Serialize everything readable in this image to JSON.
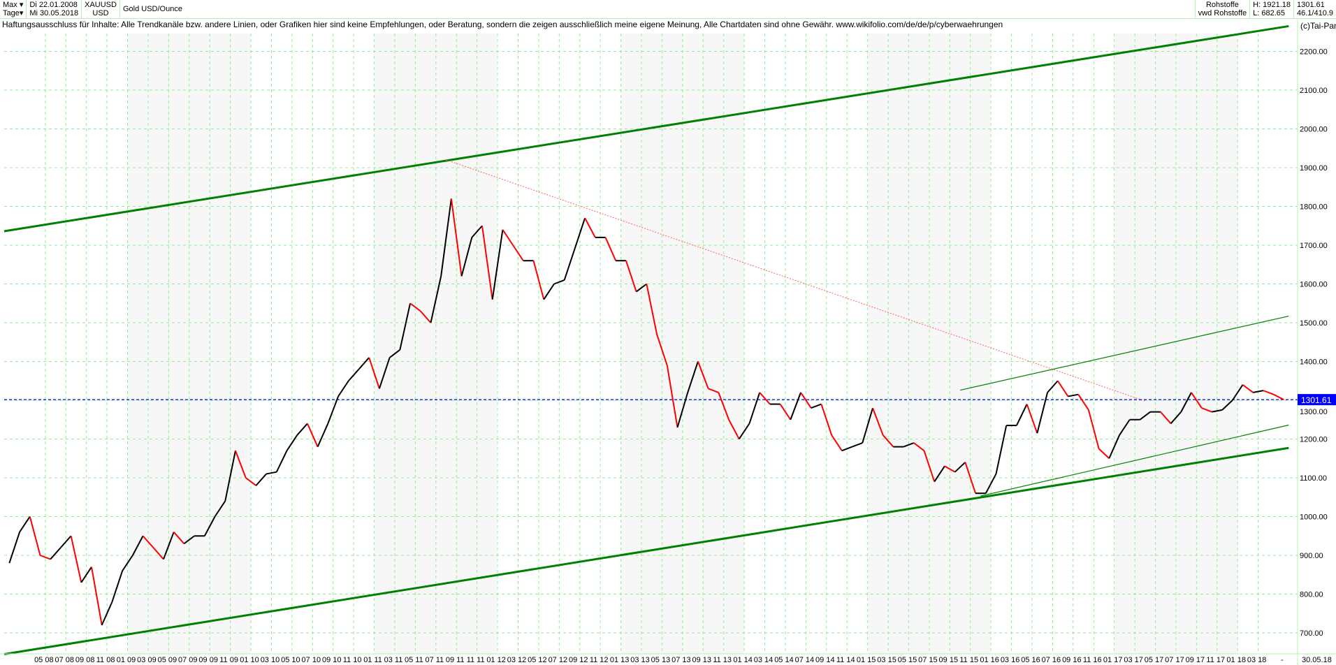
{
  "header": {
    "period_select": "Max",
    "interval_select": "Tage",
    "start_date": "Di 22.01.2008",
    "end_date": "Mi 30.05.2018",
    "symbol": "XAUUSD",
    "currency": "USD",
    "name": "Gold USD/Ounce",
    "group": "Rohstoffe",
    "source": "vwd Rohstoffe",
    "high": "H: 1921.18",
    "low": "L: 682.65",
    "last": "1301.61",
    "extra": "46.1/410.9"
  },
  "disclaimer": "Haftungsausschluss für Inhalte: Alle Trendkanäle bzw. andere Linien, oder Grafiken hier sind keine Empfehlungen, oder Beratung, sondern die zeigen ausschließlich meine eigene Meinung, Alle Chartdaten sind ohne Gewähr.  www.wikifolio.com/de/de/p/cyberwaehrungen",
  "copyright": "(c)Tai-Pan",
  "colors": {
    "up": "#000000",
    "down": "#ff0000",
    "grid": "#90ee90",
    "trend": "#008000",
    "resistance": "#ff6060",
    "last_line": "#0000ff",
    "last_box": "#0000ff"
  },
  "chart_data": {
    "type": "line",
    "title": "Gold USD/Ounce",
    "x_start": "2008-01",
    "x_end": "2018-05",
    "ylim": [
      650,
      2280
    ],
    "yticks": [
      700,
      800,
      900,
      1000,
      1100,
      1200,
      1300,
      1400,
      1500,
      1600,
      1700,
      1800,
      1900,
      2000,
      2100,
      2200
    ],
    "ytick_labels": [
      "700.00",
      "800.00",
      "900.00",
      "1000.00",
      "1100.00",
      "1200.00",
      "1300.00",
      "1400.00",
      "1500.00",
      "1600.00",
      "1700.00",
      "1800.00",
      "1900.00",
      "2000.00",
      "2100.00",
      "2200.00"
    ],
    "xtick_labels": [
      "05 08",
      "07 08",
      "09 08",
      "11 08",
      "01 09",
      "03 09",
      "05 09",
      "07 09",
      "09 09",
      "11 09",
      "01 10",
      "03 10",
      "05 10",
      "07 10",
      "09 10",
      "11 10",
      "01 11",
      "03 11",
      "05 11",
      "07 11",
      "09 11",
      "11 11",
      "01 12",
      "03 12",
      "05 12",
      "07 12",
      "09 12",
      "11 12",
      "01 13",
      "03 13",
      "05 13",
      "07 13",
      "09 13",
      "11 13",
      "01 14",
      "03 14",
      "05 14",
      "07 14",
      "09 14",
      "11 14",
      "01 15",
      "03 15",
      "05 15",
      "07 15",
      "09 15",
      "11 15",
      "01 16",
      "03 16",
      "05 16",
      "07 16",
      "09 16",
      "11 16",
      "01 17",
      "03 17",
      "05 17",
      "07 17",
      "09 17",
      "11 17",
      "01 18",
      "03 18"
    ],
    "x_end_label": "-",
    "x_last_label": "30.05.18",
    "grid": true,
    "series": [
      {
        "values": [
          880,
          960,
          1000,
          900,
          890,
          920,
          950,
          830,
          870,
          720,
          780,
          860,
          900,
          950,
          920,
          890,
          960,
          930,
          950,
          950,
          1000,
          1040,
          1170,
          1100,
          1080,
          1110,
          1115,
          1170,
          1210,
          1240,
          1180,
          1240,
          1310,
          1350,
          1380,
          1410,
          1330,
          1410,
          1430,
          1550,
          1530,
          1500,
          1620,
          1820,
          1620,
          1720,
          1750,
          1560,
          1740,
          1700,
          1660,
          1660,
          1560,
          1600,
          1610,
          1690,
          1770,
          1720,
          1720,
          1660,
          1660,
          1580,
          1600,
          1470,
          1390,
          1230,
          1320,
          1400,
          1330,
          1320,
          1250,
          1200,
          1240,
          1320,
          1290,
          1290,
          1250,
          1320,
          1280,
          1290,
          1210,
          1170,
          1180,
          1190,
          1280,
          1210,
          1180,
          1180,
          1190,
          1170,
          1090,
          1130,
          1115,
          1140,
          1060,
          1060,
          1110,
          1235,
          1235,
          1290,
          1215,
          1320,
          1350,
          1310,
          1315,
          1275,
          1175,
          1150,
          1210,
          1250,
          1250,
          1270,
          1270,
          1240,
          1270,
          1320,
          1280,
          1270,
          1275,
          1300,
          1340,
          1320,
          1325,
          1315,
          1301.61
        ]
      }
    ],
    "last_value": 1301.61,
    "trend_lines": [
      {
        "kind": "channel-upper",
        "from": [
          "2008-01",
          1736
        ],
        "to": [
          "2018-05",
          2265
        ]
      },
      {
        "kind": "channel-lower",
        "from": [
          "2008-01",
          645
        ],
        "to": [
          "2018-05",
          1177
        ]
      },
      {
        "kind": "inner-upper",
        "from": [
          "2015-10",
          1326
        ],
        "to": [
          "2018-05",
          1517
        ]
      },
      {
        "kind": "inner-lower",
        "from": [
          "2015-12",
          1053
        ],
        "to": [
          "2018-05",
          1236
        ]
      },
      {
        "kind": "resistance",
        "from": [
          "2011-08",
          1920
        ],
        "to": [
          "2017-03",
          1298
        ]
      }
    ]
  }
}
